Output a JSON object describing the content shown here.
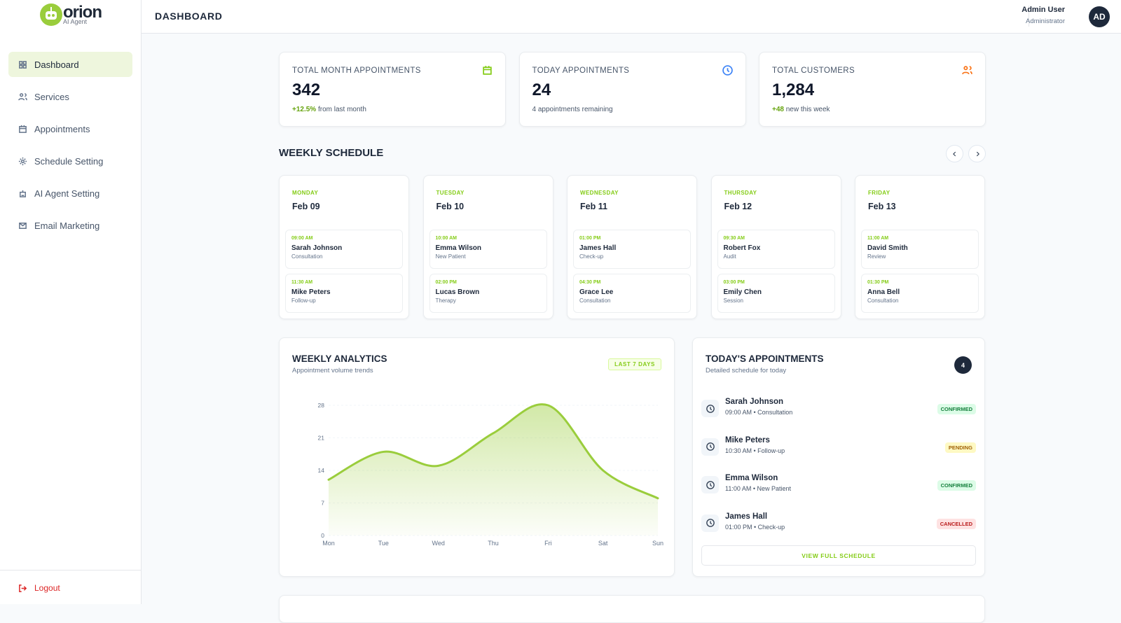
{
  "brand": {
    "name": "orion",
    "tagline": "AI Agent"
  },
  "nav": [
    "Dashboard",
    "Services",
    "Appointments",
    "Schedule Setting",
    "AI Agent Setting",
    "Email Marketing"
  ],
  "logout": "Logout",
  "header": {
    "title": "DASHBOARD",
    "user_name": "Admin User",
    "user_role": "Administrator",
    "avatar": "AD"
  },
  "stats": [
    {
      "label": "TOTAL MONTH APPOINTMENTS",
      "value": 342,
      "delta": "+12.5%",
      "note": "from last month"
    },
    {
      "label": "TODAY APPOINTMENTS",
      "value": 24,
      "note": "4 appointments remaining"
    },
    {
      "label": "TOTAL CUSTOMERS",
      "value": "1,284",
      "delta": "+48",
      "note": "new this week"
    }
  ],
  "schedule": {
    "title": "WEEKLY SCHEDULE",
    "days": [
      {
        "day": "MONDAY",
        "date": "Feb 09",
        "appointments": [
          {
            "time": "09:00 AM",
            "name": "Sarah Johnson",
            "type": "Consultation"
          },
          {
            "time": "11:30 AM",
            "name": "Mike Peters",
            "type": "Follow-up"
          }
        ]
      },
      {
        "day": "TUESDAY",
        "date": "Feb 10",
        "appointments": [
          {
            "time": "10:00 AM",
            "name": "Emma Wilson",
            "type": "New Patient"
          },
          {
            "time": "02:00 PM",
            "name": "Lucas Brown",
            "type": "Therapy"
          }
        ]
      },
      {
        "day": "WEDNESDAY",
        "date": "Feb 11",
        "appointments": [
          {
            "time": "01:00 PM",
            "name": "James Hall",
            "type": "Check-up"
          },
          {
            "time": "04:30 PM",
            "name": "Grace Lee",
            "type": "Consultation"
          }
        ]
      },
      {
        "day": "THURSDAY",
        "date": "Feb 12",
        "appointments": [
          {
            "time": "09:30 AM",
            "name": "Robert Fox",
            "type": "Audit"
          },
          {
            "time": "03:00 PM",
            "name": "Emily Chen",
            "type": "Session"
          }
        ]
      },
      {
        "day": "FRIDAY",
        "date": "Feb 13",
        "appointments": [
          {
            "time": "11:00 AM",
            "name": "David Smith",
            "type": "Review"
          },
          {
            "time": "01:30 PM",
            "name": "Anna Bell",
            "type": "Consultation"
          }
        ]
      }
    ]
  },
  "analytics": {
    "title": "WEEKLY ANALYTICS",
    "subtitle": "Appointment volume trends",
    "badge": "LAST 7 DAYS",
    "chart": {
      "type": "line",
      "x": [
        "Mon",
        "Tue",
        "Wed",
        "Thu",
        "Fri",
        "Sat",
        "Sun"
      ],
      "values": [
        12,
        18,
        15,
        22,
        28,
        14,
        8
      ],
      "ylim": [
        0,
        28
      ],
      "yticks": [
        0,
        7,
        14,
        21,
        28
      ],
      "color": "#9acd3c",
      "grid": true
    }
  },
  "today": {
    "title": "TODAY'S APPOINTMENTS",
    "subtitle": "Detailed schedule for today",
    "count": 4,
    "items": [
      {
        "name": "Sarah Johnson",
        "detail": "09:00 AM • Consultation",
        "status": "CONFIRMED"
      },
      {
        "name": "Mike Peters",
        "detail": "10:30 AM • Follow-up",
        "status": "PENDING"
      },
      {
        "name": "Emma Wilson",
        "detail": "11:00 AM • New Patient",
        "status": "CONFIRMED"
      },
      {
        "name": "James Hall",
        "detail": "01:00 PM • Check-up",
        "status": "CANCELLED"
      }
    ],
    "button": "VIEW FULL SCHEDULE"
  }
}
